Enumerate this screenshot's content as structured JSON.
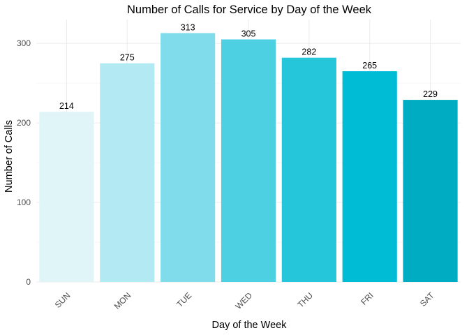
{
  "chart_data": {
    "type": "bar",
    "title": "Number of Calls for Service by Day of the Week",
    "xlabel": "Day of the Week",
    "ylabel": "Number of Calls",
    "categories": [
      "SUN",
      "MON",
      "TUE",
      "WED",
      "THU",
      "FRI",
      "SAT"
    ],
    "values": [
      214,
      275,
      313,
      305,
      282,
      265,
      229
    ],
    "data_labels": [
      "214",
      "275",
      "313",
      "305",
      "282",
      "265",
      "229"
    ],
    "colors": [
      "#e0f5f8",
      "#b3e9f2",
      "#80dcea",
      "#4dd0e1",
      "#26c6da",
      "#00bcd4",
      "#00acc1"
    ],
    "yticks": [
      0,
      100,
      200,
      300
    ],
    "ylim": [
      0,
      330
    ],
    "grid": true,
    "legend": "none"
  }
}
